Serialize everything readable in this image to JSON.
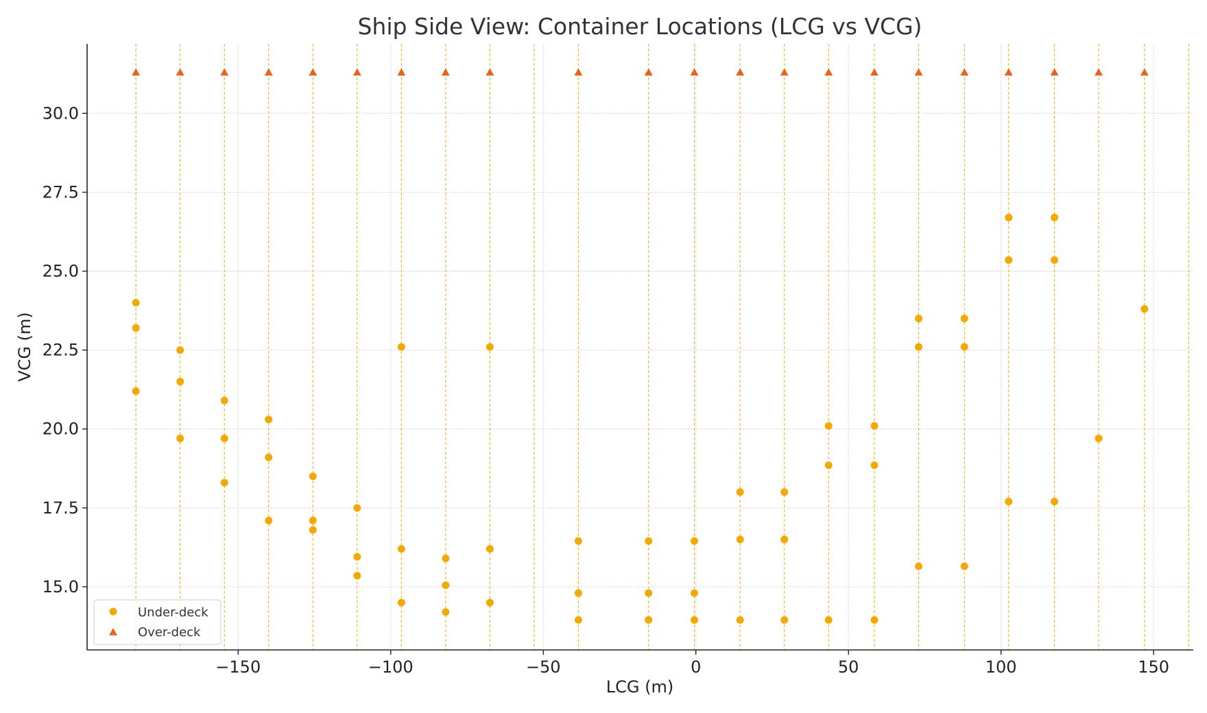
{
  "chart_data": {
    "type": "scatter",
    "title": "Ship Side View: Container Locations (LCG vs VCG)",
    "xlabel": "LCG (m)",
    "ylabel": "VCG (m)",
    "xlim": [
      -199.5,
      163
    ],
    "ylim": [
      13,
      32.2
    ],
    "x_ticks": [
      -150,
      -100,
      -50,
      0,
      50,
      100,
      150
    ],
    "y_ticks": [
      15.0,
      17.5,
      20.0,
      22.5,
      25.0,
      27.5,
      30.0
    ],
    "x_tick_labels": [
      "−150",
      "−100",
      "−50",
      "0",
      "50",
      "100",
      "150"
    ],
    "y_tick_labels": [
      "15.0",
      "17.5",
      "20.0",
      "22.5",
      "25.0",
      "27.5",
      "30.0"
    ],
    "grid": true,
    "legend_position": "lower-left",
    "bay_lines": [
      -183.5,
      -169,
      -154.5,
      -140,
      -125.5,
      -111,
      -96.5,
      -82,
      -67.5,
      -53,
      -38.5,
      -15.5,
      -0.5,
      14.5,
      29,
      43.5,
      58.5,
      73,
      88,
      102.5,
      117.5,
      132,
      147,
      161.5
    ],
    "series": [
      {
        "name": "Under-deck",
        "marker": "circle",
        "color": "#f5a800",
        "points": [
          [
            -183.5,
            24.0
          ],
          [
            -183.5,
            23.2
          ],
          [
            -183.5,
            21.2
          ],
          [
            -169,
            22.5
          ],
          [
            -169,
            21.5
          ],
          [
            -169,
            19.7
          ],
          [
            -154.5,
            20.9
          ],
          [
            -154.5,
            19.7
          ],
          [
            -154.5,
            18.3
          ],
          [
            -140,
            20.3
          ],
          [
            -140,
            19.1
          ],
          [
            -140,
            17.1
          ],
          [
            -125.5,
            18.5
          ],
          [
            -125.5,
            17.1
          ],
          [
            -125.5,
            16.8
          ],
          [
            -111,
            17.5
          ],
          [
            -111,
            15.95
          ],
          [
            -111,
            15.35
          ],
          [
            -96.5,
            22.6
          ],
          [
            -96.5,
            16.2
          ],
          [
            -96.5,
            14.5
          ],
          [
            -82,
            15.9
          ],
          [
            -82,
            15.05
          ],
          [
            -82,
            14.2
          ],
          [
            -67.5,
            22.6
          ],
          [
            -67.5,
            16.2
          ],
          [
            -67.5,
            14.5
          ],
          [
            -38.5,
            16.45
          ],
          [
            -38.5,
            14.8
          ],
          [
            -38.5,
            13.95
          ],
          [
            -15.5,
            16.45
          ],
          [
            -15.5,
            14.8
          ],
          [
            -15.5,
            13.95
          ],
          [
            -0.5,
            16.45
          ],
          [
            -0.5,
            14.8
          ],
          [
            -0.5,
            13.95
          ],
          [
            14.5,
            18.0
          ],
          [
            14.5,
            16.5
          ],
          [
            14.5,
            13.95
          ],
          [
            29,
            18.0
          ],
          [
            29,
            16.5
          ],
          [
            29,
            13.95
          ],
          [
            43.5,
            20.1
          ],
          [
            43.5,
            18.85
          ],
          [
            43.5,
            13.95
          ],
          [
            58.5,
            20.1
          ],
          [
            58.5,
            18.85
          ],
          [
            58.5,
            13.95
          ],
          [
            73,
            23.5
          ],
          [
            73,
            22.6
          ],
          [
            73,
            15.65
          ],
          [
            88,
            23.5
          ],
          [
            88,
            22.6
          ],
          [
            88,
            15.65
          ],
          [
            102.5,
            26.7
          ],
          [
            102.5,
            25.35
          ],
          [
            102.5,
            17.7
          ],
          [
            117.5,
            26.7
          ],
          [
            117.5,
            25.35
          ],
          [
            117.5,
            17.7
          ],
          [
            132,
            19.7
          ],
          [
            147,
            23.8
          ]
        ]
      },
      {
        "name": "Over-deck",
        "marker": "triangle",
        "color": "#e8641a",
        "points": [
          [
            -183.5,
            31.3
          ],
          [
            -169,
            31.3
          ],
          [
            -154.5,
            31.3
          ],
          [
            -140,
            31.3
          ],
          [
            -125.5,
            31.3
          ],
          [
            -111,
            31.3
          ],
          [
            -96.5,
            31.3
          ],
          [
            -82,
            31.3
          ],
          [
            -67.5,
            31.3
          ],
          [
            -38.5,
            31.3
          ],
          [
            -15.5,
            31.3
          ],
          [
            -0.5,
            31.3
          ],
          [
            14.5,
            31.3
          ],
          [
            29,
            31.3
          ],
          [
            43.5,
            31.3
          ],
          [
            58.5,
            31.3
          ],
          [
            73,
            31.3
          ],
          [
            88,
            31.3
          ],
          [
            102.5,
            31.3
          ],
          [
            117.5,
            31.3
          ],
          [
            132,
            31.3
          ],
          [
            147,
            31.3
          ]
        ]
      }
    ]
  },
  "colors": {
    "bay_line": "#f5a800",
    "grid": "#d2d2d2",
    "axis": "#222222"
  }
}
